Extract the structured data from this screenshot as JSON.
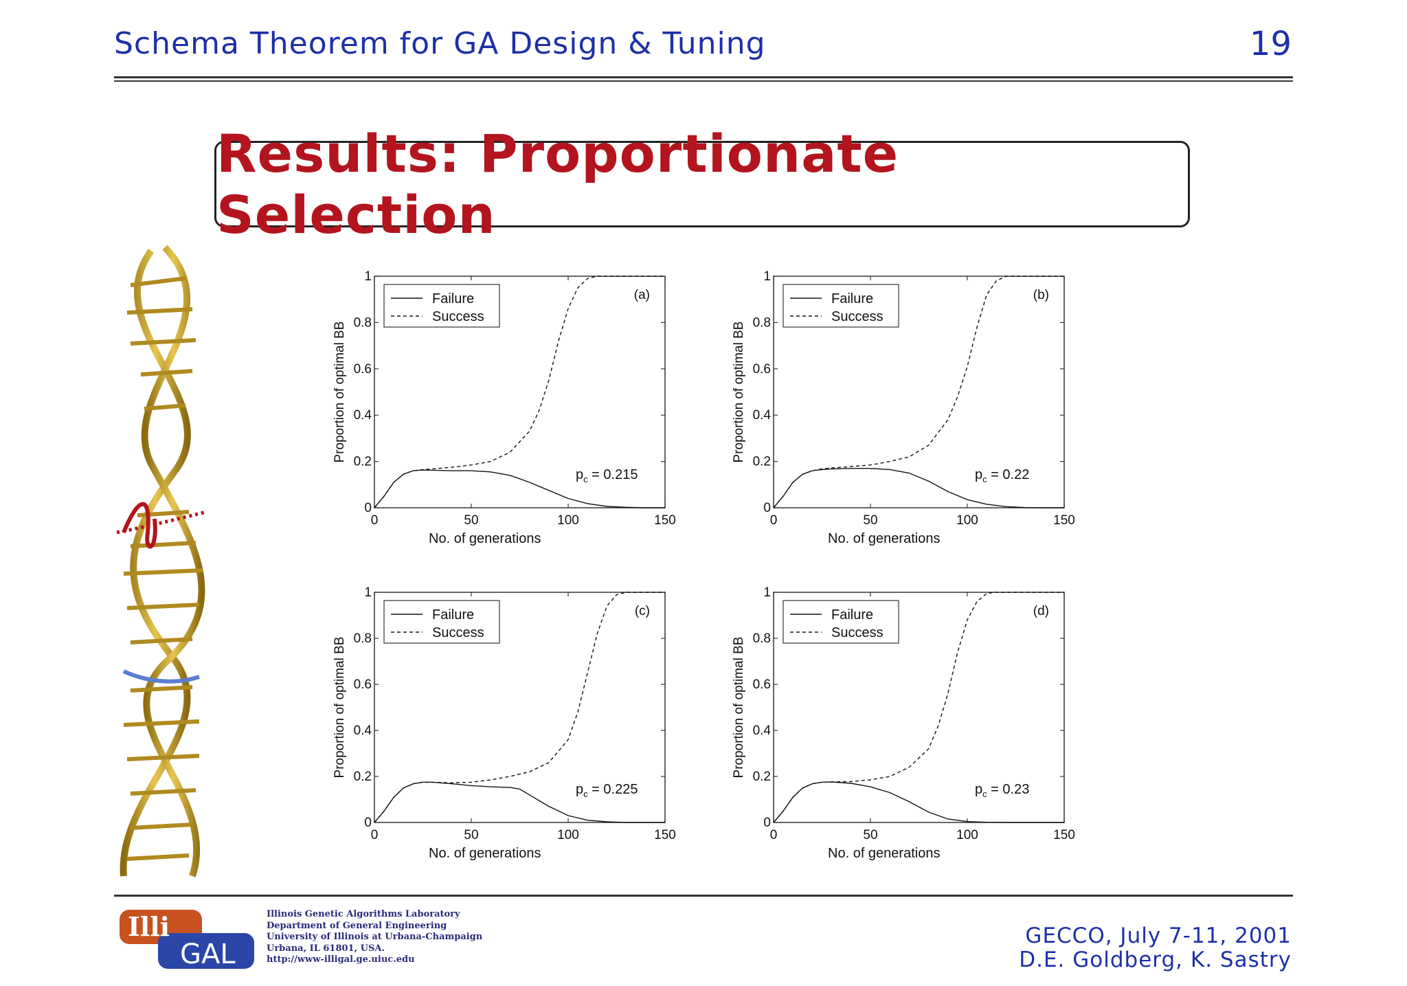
{
  "header": {
    "title": "Schema Theorem for GA Design & Tuning",
    "page_number": "19"
  },
  "heading": "Results: Proportionate Selection",
  "footer": {
    "lab_lines": [
      "Illinois Genetic Algorithms Laboratory",
      "Department of General Engineering",
      "University of Illinois at Urbana-Champaign",
      "Urbana, IL 61801, USA.",
      "http://www-illigal.ge.uiuc.edu"
    ],
    "conference": "GECCO,  July 7-11, 2001",
    "authors": "D.E. Goldberg, K. Sastry",
    "logo_text_top": "Illi",
    "logo_text_bottom": "GAL"
  },
  "colors": {
    "title_blue": "#1d2fa8",
    "heading_red": "#b3141e",
    "dna_gold": "#c9a227"
  },
  "chart_data": [
    {
      "type": "line",
      "panel": "(a)",
      "annotation": "p_c = 0.215",
      "annotation_symbol": "p",
      "annotation_sub": "c",
      "annotation_value": "= 0.215",
      "xlabel": "No. of generations",
      "ylabel": "Proportion of optimal BB",
      "xlim": [
        0,
        150
      ],
      "ylim": [
        0,
        1
      ],
      "xticks": [
        "0",
        "50",
        "100",
        "150"
      ],
      "yticks": [
        "0",
        "0.2",
        "0.4",
        "0.6",
        "0.8",
        "1"
      ],
      "legend": "top-left",
      "series": [
        {
          "name": "Failure",
          "style": "solid",
          "x": [
            0,
            5,
            10,
            15,
            20,
            25,
            30,
            40,
            50,
            60,
            70,
            80,
            90,
            100,
            110,
            120,
            130,
            140,
            150
          ],
          "y": [
            0,
            0.05,
            0.11,
            0.145,
            0.16,
            0.163,
            0.162,
            0.16,
            0.16,
            0.155,
            0.14,
            0.11,
            0.075,
            0.04,
            0.018,
            0.006,
            0.002,
            0,
            0
          ]
        },
        {
          "name": "Success",
          "style": "dashed",
          "x": [
            0,
            5,
            10,
            15,
            20,
            25,
            30,
            40,
            50,
            60,
            70,
            80,
            85,
            90,
            95,
            100,
            105,
            110,
            115,
            120,
            130,
            140,
            150
          ],
          "y": [
            0,
            0.05,
            0.11,
            0.145,
            0.16,
            0.165,
            0.168,
            0.175,
            0.185,
            0.2,
            0.24,
            0.33,
            0.42,
            0.55,
            0.72,
            0.86,
            0.95,
            0.99,
            1,
            1,
            1,
            1,
            1
          ]
        }
      ]
    },
    {
      "type": "line",
      "panel": "(b)",
      "annotation": "p_c = 0.22",
      "annotation_symbol": "p",
      "annotation_sub": "c",
      "annotation_value": "= 0.22",
      "xlabel": "No. of generations",
      "ylabel": "Proportion of optimal BB",
      "xlim": [
        0,
        150
      ],
      "ylim": [
        0,
        1
      ],
      "xticks": [
        "0",
        "50",
        "100",
        "150"
      ],
      "yticks": [
        "0",
        "0.2",
        "0.4",
        "0.6",
        "0.8",
        "1"
      ],
      "legend": "top-left",
      "series": [
        {
          "name": "Failure",
          "style": "solid",
          "x": [
            0,
            5,
            10,
            15,
            20,
            25,
            30,
            40,
            50,
            60,
            70,
            80,
            90,
            100,
            110,
            120,
            130,
            140,
            150
          ],
          "y": [
            0,
            0.05,
            0.11,
            0.145,
            0.16,
            0.165,
            0.168,
            0.17,
            0.17,
            0.165,
            0.15,
            0.115,
            0.07,
            0.035,
            0.015,
            0.005,
            0.001,
            0,
            0
          ]
        },
        {
          "name": "Success",
          "style": "dashed",
          "x": [
            0,
            5,
            10,
            15,
            20,
            25,
            30,
            40,
            50,
            60,
            70,
            80,
            90,
            95,
            100,
            105,
            110,
            115,
            120,
            125,
            130,
            140,
            150
          ],
          "y": [
            0,
            0.05,
            0.11,
            0.145,
            0.16,
            0.168,
            0.172,
            0.178,
            0.185,
            0.2,
            0.22,
            0.27,
            0.38,
            0.48,
            0.61,
            0.78,
            0.92,
            0.98,
            1,
            1,
            1,
            1,
            1
          ]
        }
      ]
    },
    {
      "type": "line",
      "panel": "(c)",
      "annotation": "p_c = 0.225",
      "annotation_symbol": "p",
      "annotation_sub": "c",
      "annotation_value": "= 0.225",
      "xlabel": "No. of generations",
      "ylabel": "Proportion of optimal BB",
      "xlim": [
        0,
        150
      ],
      "ylim": [
        0,
        1
      ],
      "xticks": [
        "0",
        "50",
        "100",
        "150"
      ],
      "yticks": [
        "0",
        "0.2",
        "0.4",
        "0.6",
        "0.8",
        "1"
      ],
      "legend": "top-left",
      "series": [
        {
          "name": "Failure",
          "style": "solid",
          "x": [
            0,
            5,
            10,
            15,
            20,
            25,
            30,
            40,
            50,
            60,
            70,
            75,
            80,
            90,
            100,
            110,
            120,
            130,
            140,
            150
          ],
          "y": [
            0,
            0.05,
            0.11,
            0.15,
            0.168,
            0.175,
            0.175,
            0.168,
            0.16,
            0.155,
            0.152,
            0.145,
            0.12,
            0.07,
            0.03,
            0.01,
            0.003,
            0,
            0,
            0
          ]
        },
        {
          "name": "Success",
          "style": "dashed",
          "x": [
            0,
            5,
            10,
            15,
            20,
            25,
            30,
            40,
            50,
            60,
            70,
            80,
            90,
            100,
            105,
            110,
            115,
            120,
            125,
            130,
            140,
            150
          ],
          "y": [
            0,
            0.05,
            0.11,
            0.15,
            0.168,
            0.175,
            0.175,
            0.172,
            0.175,
            0.185,
            0.2,
            0.22,
            0.26,
            0.36,
            0.48,
            0.65,
            0.82,
            0.94,
            0.99,
            1,
            1,
            1
          ]
        }
      ]
    },
    {
      "type": "line",
      "panel": "(d)",
      "annotation": "p_c = 0.23",
      "annotation_symbol": "p",
      "annotation_sub": "c",
      "annotation_value": "= 0.23",
      "xlabel": "No. of generations",
      "ylabel": "Proportion of optimal BB",
      "xlim": [
        0,
        150
      ],
      "ylim": [
        0,
        1
      ],
      "xticks": [
        "0",
        "50",
        "100",
        "150"
      ],
      "yticks": [
        "0",
        "0.2",
        "0.4",
        "0.6",
        "0.8",
        "1"
      ],
      "legend": "top-left",
      "series": [
        {
          "name": "Failure",
          "style": "solid",
          "x": [
            0,
            5,
            10,
            15,
            20,
            25,
            30,
            40,
            50,
            60,
            70,
            80,
            90,
            100,
            110,
            120,
            130,
            140,
            150
          ],
          "y": [
            0,
            0.05,
            0.11,
            0.15,
            0.168,
            0.175,
            0.176,
            0.17,
            0.155,
            0.13,
            0.09,
            0.045,
            0.015,
            0.004,
            0.001,
            0,
            0,
            0,
            0
          ]
        },
        {
          "name": "Success",
          "style": "dashed",
          "x": [
            0,
            5,
            10,
            15,
            20,
            25,
            30,
            40,
            50,
            60,
            70,
            80,
            85,
            90,
            95,
            100,
            105,
            110,
            115,
            120,
            130,
            140,
            150
          ],
          "y": [
            0,
            0.05,
            0.11,
            0.15,
            0.168,
            0.175,
            0.176,
            0.178,
            0.185,
            0.2,
            0.24,
            0.32,
            0.42,
            0.56,
            0.74,
            0.88,
            0.96,
            0.995,
            1,
            1,
            1,
            1,
            1
          ]
        }
      ]
    }
  ]
}
